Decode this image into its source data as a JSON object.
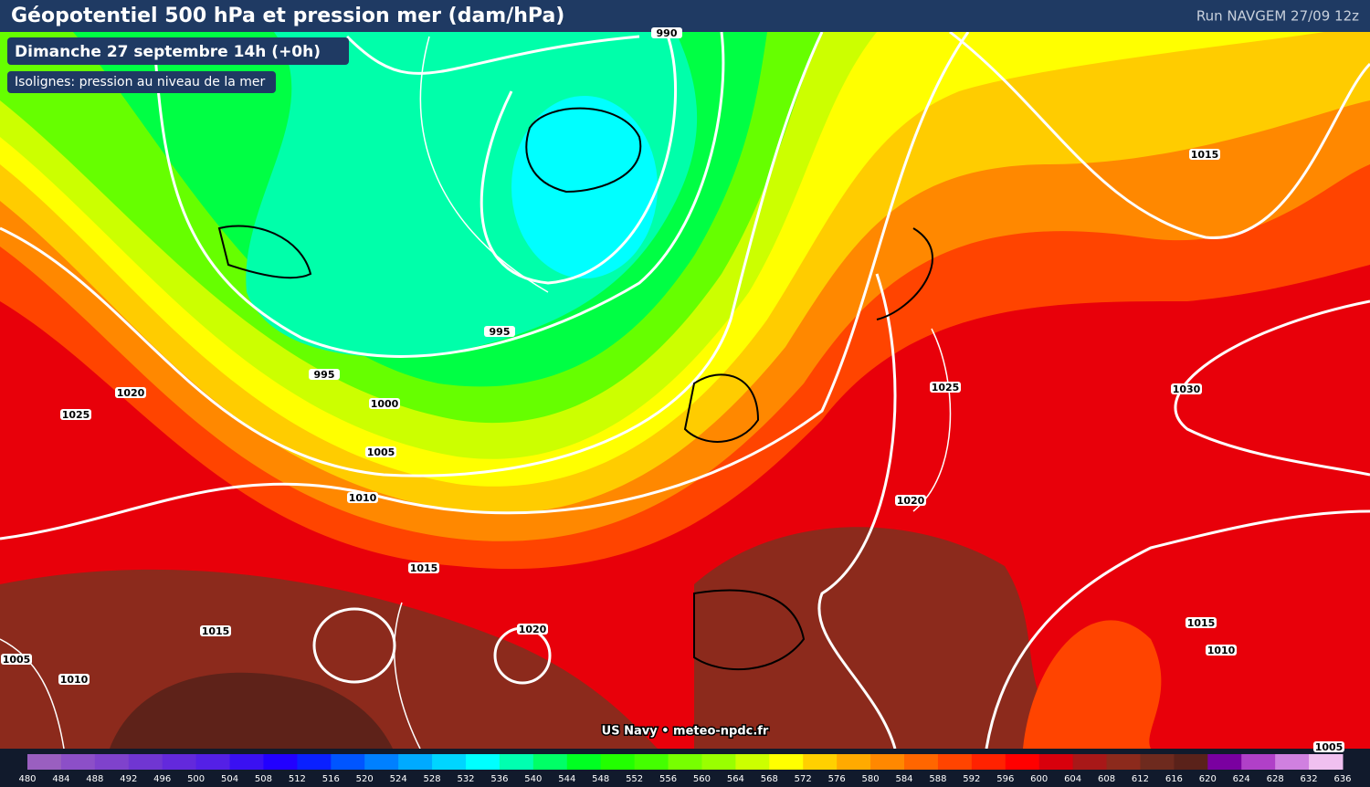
{
  "header": {
    "title": "Géopotentiel 500 hPa et pression mer (dam/hPa)",
    "run": "Run NAVGEM 27/09 12z"
  },
  "date_label": "Dimanche 27 septembre 14h (+0h)",
  "isolines_label": "Isolignes: pression au niveau de la mer",
  "isobar_labels": [
    990,
    995,
    995,
    1000,
    1005,
    1010,
    1015,
    1015,
    1020,
    1020,
    1025,
    1005,
    1010,
    1015,
    1025,
    1030,
    1020,
    1015,
    1010,
    1005
  ],
  "credit": "US Navy • meteo-npdc.fr",
  "colorbar": {
    "ticks": [
      480,
      484,
      488,
      492,
      496,
      500,
      504,
      508,
      512,
      516,
      520,
      524,
      528,
      532,
      536,
      540,
      544,
      548,
      552,
      556,
      560,
      564,
      568,
      572,
      576,
      580,
      584,
      588,
      592,
      596,
      600,
      604,
      608,
      612,
      616,
      620,
      624,
      628,
      632,
      636
    ],
    "colors": [
      "#9a5fc0",
      "#8c4fc8",
      "#7f42cc",
      "#7036d2",
      "#6329dc",
      "#5420e6",
      "#3a10f2",
      "#2200ff",
      "#0a20ff",
      "#0055ff",
      "#0080ff",
      "#00aaff",
      "#00d5ff",
      "#00ffff",
      "#00ffb0",
      "#00ff66",
      "#00ff22",
      "#22ff00",
      "#44ff00",
      "#77ff00",
      "#99ff00",
      "#ccff00",
      "#ffff00",
      "#ffd000",
      "#ffaa00",
      "#ff8800",
      "#ff6600",
      "#ff4400",
      "#ff2200",
      "#ff0000",
      "#d8000c",
      "#a81818",
      "#8c2a1c",
      "#6e2a1e",
      "#5a221a",
      "#7a00a0",
      "#b040c8",
      "#d080e0",
      "#f0c0f0"
    ]
  }
}
